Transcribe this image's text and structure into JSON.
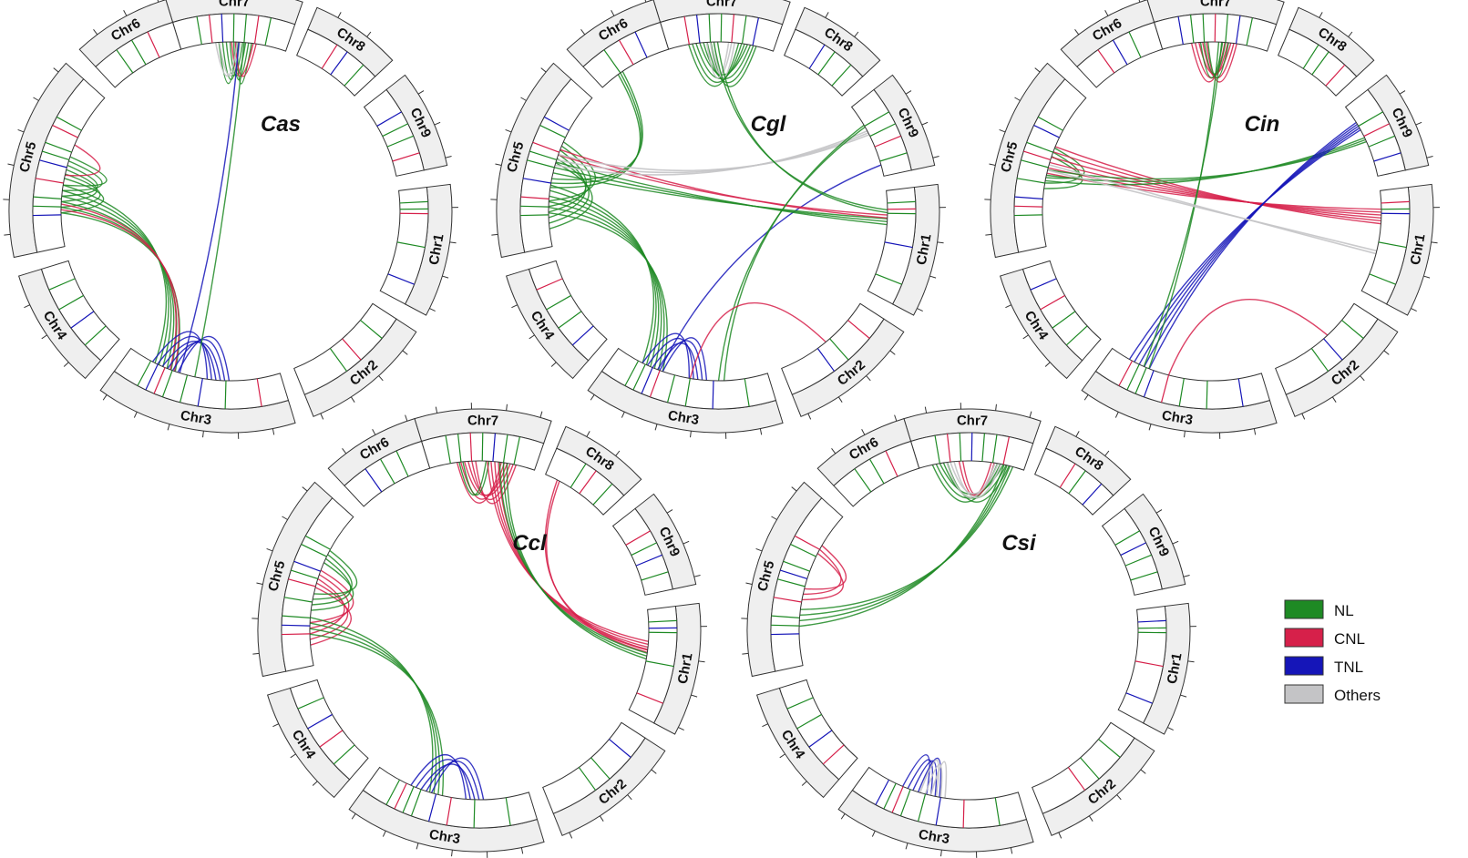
{
  "colors": {
    "NL": "#1e8a24",
    "CNL": "#d6204a",
    "TNL": "#1515b8",
    "Others": "#c4c4c6",
    "segment_fill": "#efefef",
    "segment_stroke": "#333333"
  },
  "chromosome_names": [
    "Chr1",
    "Chr2",
    "Chr3",
    "Chr4",
    "Chr5",
    "Chr6",
    "Chr7",
    "Chr8",
    "Chr9"
  ],
  "legend": [
    {
      "key": "NL",
      "label": "NL"
    },
    {
      "key": "CNL",
      "label": "CNL"
    },
    {
      "key": "TNL",
      "label": "TNL"
    },
    {
      "key": "Others",
      "label": "Others"
    }
  ],
  "panels": [
    {
      "species": "Cas",
      "links": [
        {
          "type": "NL",
          "from": [
            "Chr7",
            0.45
          ],
          "to": [
            "Chr7",
            0.6
          ],
          "count": 6
        },
        {
          "type": "CNL",
          "from": [
            "Chr7",
            0.5
          ],
          "to": [
            "Chr7",
            0.7
          ],
          "count": 2
        },
        {
          "type": "Others",
          "from": [
            "Chr7",
            0.35
          ],
          "to": [
            "Chr7",
            0.55
          ],
          "count": 2
        },
        {
          "type": "NL",
          "from": [
            "Chr5",
            0.3
          ],
          "to": [
            "Chr5",
            0.5
          ],
          "count": 6
        },
        {
          "type": "CNL",
          "from": [
            "Chr5",
            0.65
          ],
          "to": [
            "Chr5",
            0.45
          ],
          "count": 1
        },
        {
          "type": "NL",
          "from": [
            "Chr5",
            0.3
          ],
          "to": [
            "Chr3",
            0.75
          ],
          "count": 6
        },
        {
          "type": "CNL",
          "from": [
            "Chr5",
            0.25
          ],
          "to": [
            "Chr3",
            0.7
          ],
          "count": 2
        },
        {
          "type": "TNL",
          "from": [
            "Chr3",
            0.75
          ],
          "to": [
            "Chr3",
            0.4
          ],
          "count": 6
        },
        {
          "type": "TNL",
          "from": [
            "Chr7",
            0.55
          ],
          "to": [
            "Chr3",
            0.65
          ],
          "count": 1
        },
        {
          "type": "NL",
          "from": [
            "Chr7",
            0.6
          ],
          "to": [
            "Chr3",
            0.55
          ],
          "count": 1
        }
      ]
    },
    {
      "species": "Cgl",
      "links": [
        {
          "type": "NL",
          "from": [
            "Chr7",
            0.3
          ],
          "to": [
            "Chr7",
            0.75
          ],
          "count": 7
        },
        {
          "type": "Others",
          "from": [
            "Chr7",
            0.4
          ],
          "to": [
            "Chr7",
            0.6
          ],
          "count": 3
        },
        {
          "type": "NL",
          "from": [
            "Chr5",
            0.2
          ],
          "to": [
            "Chr5",
            0.6
          ],
          "count": 6
        },
        {
          "type": "NL",
          "from": [
            "Chr6",
            0.3
          ],
          "to": [
            "Chr5",
            0.4
          ],
          "count": 3
        },
        {
          "type": "NL",
          "from": [
            "Chr5",
            0.3
          ],
          "to": [
            "Chr3",
            0.75
          ],
          "count": 6
        },
        {
          "type": "TNL",
          "from": [
            "Chr3",
            0.75
          ],
          "to": [
            "Chr3",
            0.45
          ],
          "count": 5
        },
        {
          "type": "TNL",
          "from": [
            "Chr3",
            0.7
          ],
          "to": [
            "Chr9",
            0.85
          ],
          "count": 1
        },
        {
          "type": "NL",
          "from": [
            "Chr5",
            0.5
          ],
          "to": [
            "Chr1",
            0.3
          ],
          "count": 3
        },
        {
          "type": "CNL",
          "from": [
            "Chr5",
            0.6
          ],
          "to": [
            "Chr1",
            0.25
          ],
          "count": 2
        },
        {
          "type": "Others",
          "from": [
            "Chr5",
            0.55
          ],
          "to": [
            "Chr9",
            0.4
          ],
          "count": 3
        },
        {
          "type": "NL",
          "from": [
            "Chr7",
            0.45
          ],
          "to": [
            "Chr1",
            0.2
          ],
          "count": 2
        },
        {
          "type": "NL",
          "from": [
            "Chr3",
            0.3
          ],
          "to": [
            "Chr9",
            0.3
          ],
          "count": 2
        },
        {
          "type": "CNL",
          "from": [
            "Chr3",
            0.5
          ],
          "to": [
            "Chr2",
            0.5
          ],
          "count": 1
        }
      ]
    },
    {
      "species": "Cin",
      "links": [
        {
          "type": "CNL",
          "from": [
            "Chr7",
            0.35
          ],
          "to": [
            "Chr7",
            0.65
          ],
          "count": 5
        },
        {
          "type": "NL",
          "from": [
            "Chr7",
            0.4
          ],
          "to": [
            "Chr7",
            0.6
          ],
          "count": 3
        },
        {
          "type": "NL",
          "from": [
            "Chr5",
            0.4
          ],
          "to": [
            "Chr5",
            0.6
          ],
          "count": 3
        },
        {
          "type": "CNL",
          "from": [
            "Chr5",
            0.55
          ],
          "to": [
            "Chr1",
            0.25
          ],
          "count": 6
        },
        {
          "type": "NL",
          "from": [
            "Chr5",
            0.45
          ],
          "to": [
            "Chr9",
            0.5
          ],
          "count": 3
        },
        {
          "type": "TNL",
          "from": [
            "Chr3",
            0.8
          ],
          "to": [
            "Chr9",
            0.3
          ],
          "count": 5
        },
        {
          "type": "NL",
          "from": [
            "Chr3",
            0.75
          ],
          "to": [
            "Chr7",
            0.55
          ],
          "count": 2
        },
        {
          "type": "Others",
          "from": [
            "Chr5",
            0.5
          ],
          "to": [
            "Chr1",
            0.6
          ],
          "count": 2
        },
        {
          "type": "CNL",
          "from": [
            "Chr3",
            0.6
          ],
          "to": [
            "Chr2",
            0.4
          ],
          "count": 1
        }
      ]
    },
    {
      "species": "Ccl",
      "links": [
        {
          "type": "CNL",
          "from": [
            "Chr7",
            0.35
          ],
          "to": [
            "Chr7",
            0.75
          ],
          "count": 6
        },
        {
          "type": "NL",
          "from": [
            "Chr7",
            0.3
          ],
          "to": [
            "Chr7",
            0.55
          ],
          "count": 2
        },
        {
          "type": "CNL",
          "from": [
            "Chr5",
            0.2
          ],
          "to": [
            "Chr5",
            0.55
          ],
          "count": 5
        },
        {
          "type": "NL",
          "from": [
            "Chr5",
            0.4
          ],
          "to": [
            "Chr5",
            0.7
          ],
          "count": 4
        },
        {
          "type": "CNL",
          "from": [
            "Chr7",
            0.6
          ],
          "to": [
            "Chr1",
            0.35
          ],
          "count": 4
        },
        {
          "type": "CNL",
          "from": [
            "Chr8",
            0.2
          ],
          "to": [
            "Chr1",
            0.4
          ],
          "count": 2
        },
        {
          "type": "NL",
          "from": [
            "Chr7",
            0.7
          ],
          "to": [
            "Chr1",
            0.45
          ],
          "count": 3
        },
        {
          "type": "NL",
          "from": [
            "Chr5",
            0.25
          ],
          "to": [
            "Chr3",
            0.6
          ],
          "count": 4
        },
        {
          "type": "TNL",
          "from": [
            "Chr3",
            0.7
          ],
          "to": [
            "Chr3",
            0.35
          ],
          "count": 5
        }
      ]
    },
    {
      "species": "Csi",
      "links": [
        {
          "type": "NL",
          "from": [
            "Chr7",
            0.2
          ],
          "to": [
            "Chr7",
            0.8
          ],
          "count": 5
        },
        {
          "type": "CNL",
          "from": [
            "Chr7",
            0.4
          ],
          "to": [
            "Chr7",
            0.7
          ],
          "count": 2
        },
        {
          "type": "Others",
          "from": [
            "Chr7",
            0.3
          ],
          "to": [
            "Chr7",
            0.75
          ],
          "count": 3
        },
        {
          "type": "NL",
          "from": [
            "Chr5",
            0.3
          ],
          "to": [
            "Chr7",
            0.85
          ],
          "count": 4
        },
        {
          "type": "CNL",
          "from": [
            "Chr5",
            0.45
          ],
          "to": [
            "Chr5",
            0.75
          ],
          "count": 3
        },
        {
          "type": "TNL",
          "from": [
            "Chr3",
            0.7
          ],
          "to": [
            "Chr3",
            0.55
          ],
          "count": 4
        },
        {
          "type": "Others",
          "from": [
            "Chr3",
            0.6
          ],
          "to": [
            "Chr3",
            0.5
          ],
          "count": 3
        }
      ]
    }
  ]
}
